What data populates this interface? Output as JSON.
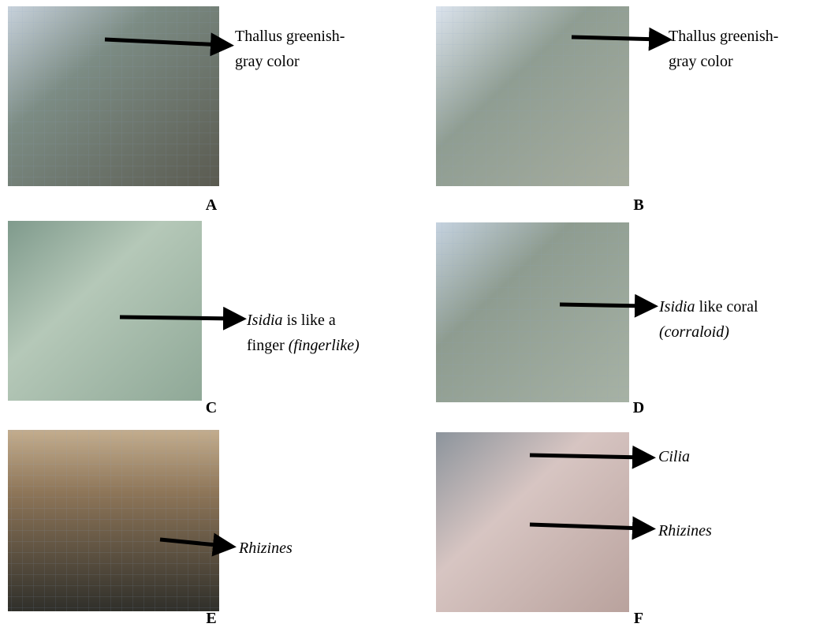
{
  "panels": [
    {
      "label": "A",
      "annotations": [
        {
          "lines": [
            [
              {
                "text": "Thallus greenish-"
              }
            ],
            [
              {
                "text": "gray color"
              }
            ]
          ]
        }
      ]
    },
    {
      "label": "B",
      "annotations": [
        {
          "lines": [
            [
              {
                "text": "Thallus greenish-"
              }
            ],
            [
              {
                "text": "gray color"
              }
            ]
          ]
        }
      ]
    },
    {
      "label": "C",
      "annotations": [
        {
          "lines": [
            [
              {
                "text": "Isidia",
                "italic": true
              },
              {
                "text": " is like a"
              }
            ],
            [
              {
                "text": "finger "
              },
              {
                "text": "(fingerlike)",
                "italic": true
              }
            ]
          ]
        }
      ]
    },
    {
      "label": "D",
      "annotations": [
        {
          "lines": [
            [
              {
                "text": "Isidia",
                "italic": true
              },
              {
                "text": " like coral"
              }
            ],
            [
              {
                "text": "(corraloid)",
                "italic": true
              }
            ]
          ]
        }
      ]
    },
    {
      "label": "E",
      "annotations": [
        {
          "lines": [
            [
              {
                "text": "Rhizines",
                "italic": true
              }
            ]
          ]
        }
      ]
    },
    {
      "label": "F",
      "annotations": [
        {
          "lines": [
            [
              {
                "text": "Cilia",
                "italic": true
              }
            ]
          ]
        },
        {
          "lines": [
            [
              {
                "text": "Rhizines",
                "italic": true
              }
            ]
          ]
        }
      ]
    }
  ]
}
